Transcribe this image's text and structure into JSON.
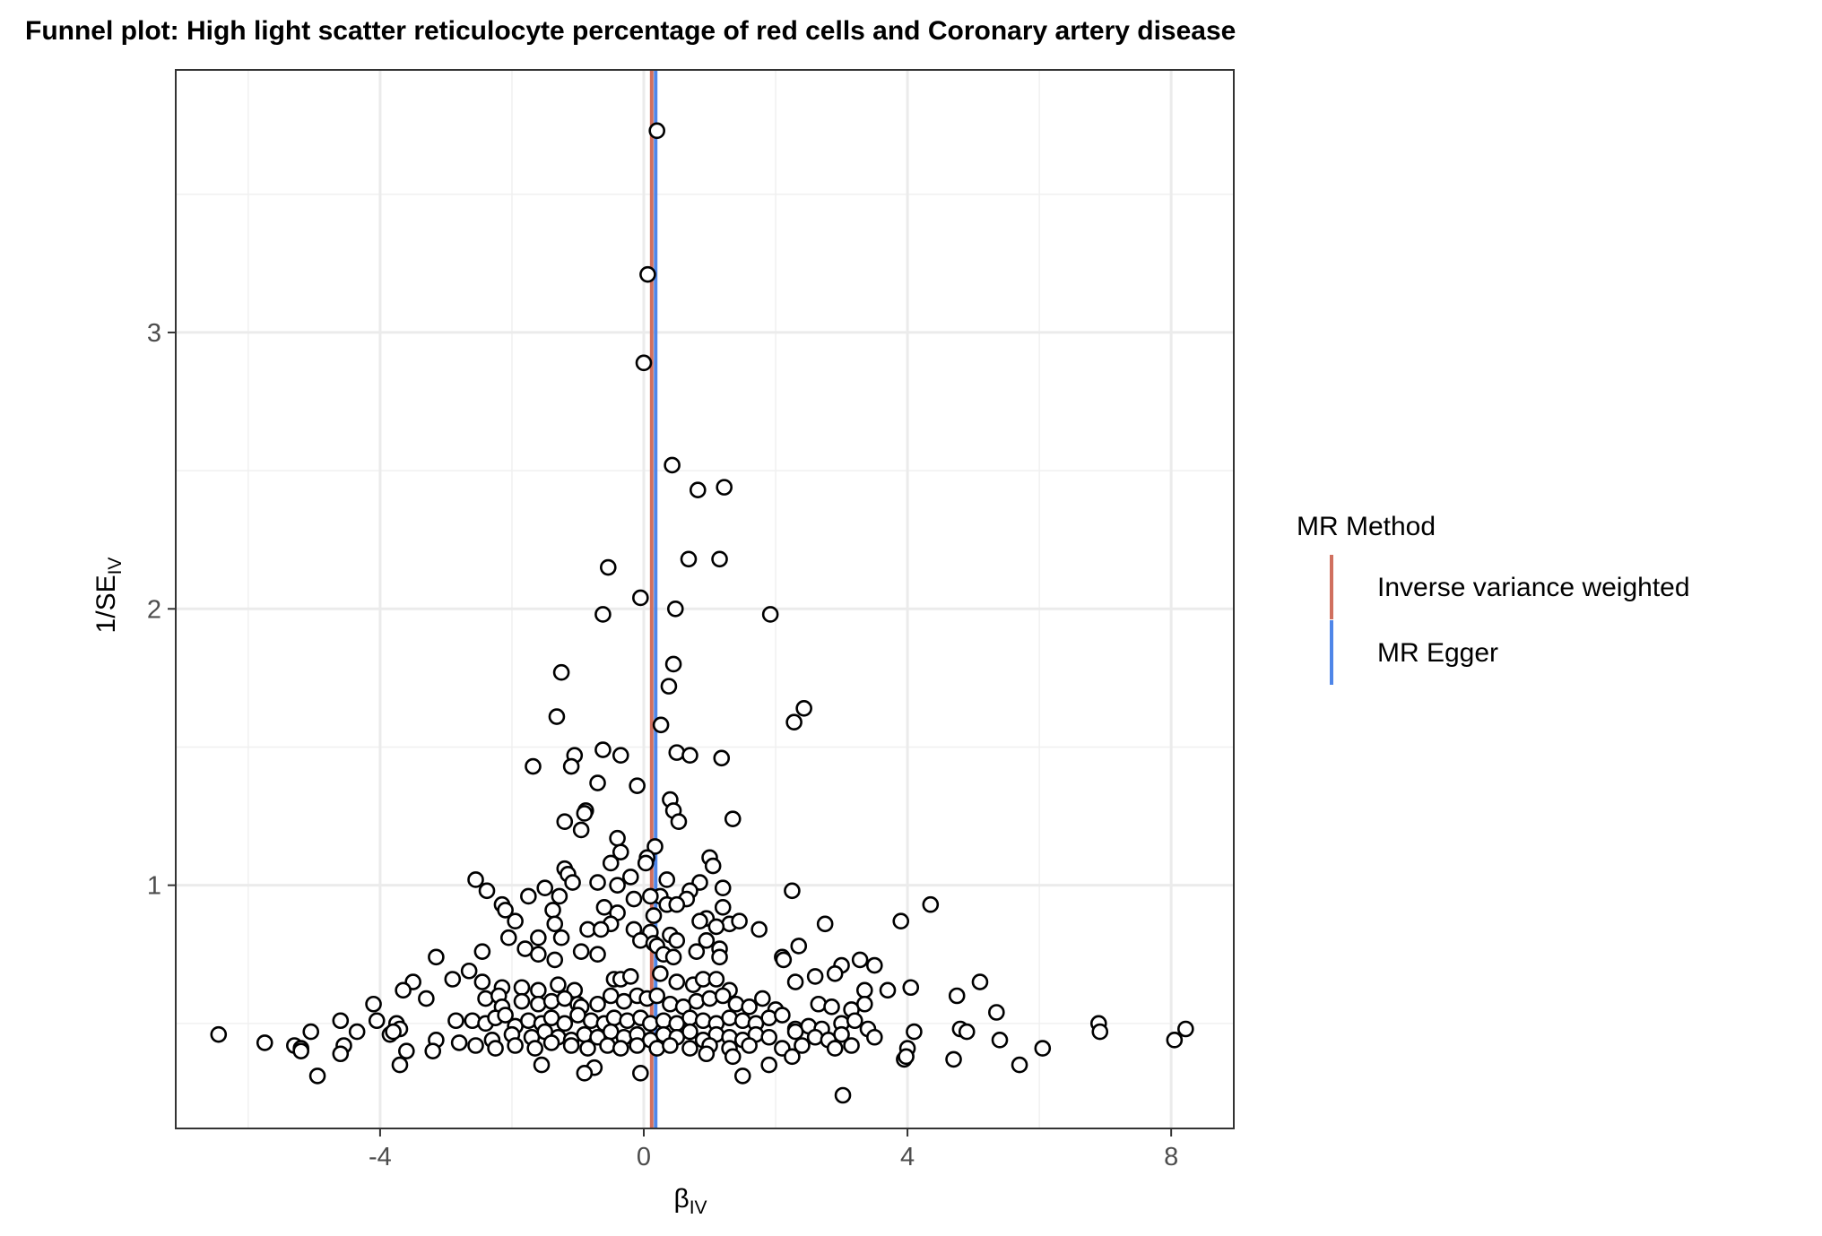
{
  "chart_data": {
    "type": "scatter",
    "title": "Funnel plot: High light scatter reticulocyte percentage of red cells and Coronary artery disease",
    "xlabel_main": "β",
    "xlabel_sub": "IV",
    "ylabel_main": "1/SE",
    "ylabel_sub": "IV",
    "xlim": [
      -7.1,
      8.95
    ],
    "ylim": [
      0.12,
      3.95
    ],
    "x_ticks": [
      -4,
      0,
      4,
      8
    ],
    "x_tick_labels": [
      "-4",
      "0",
      "4",
      "8"
    ],
    "y_ticks": [
      1,
      2,
      3
    ],
    "y_tick_labels": [
      "1",
      "2",
      "3"
    ],
    "grid": true,
    "legend": {
      "title": "MR Method",
      "placement": "right",
      "entries": [
        {
          "label": "Inverse variance weighted",
          "color": "#d0705f"
        },
        {
          "label": "MR Egger",
          "color": "#4f86e8"
        }
      ]
    },
    "lines": [
      {
        "name": "Inverse variance weighted",
        "x": 0.12,
        "color": "#d0705f"
      },
      {
        "name": "MR Egger",
        "x": 0.18,
        "color": "#4f86e8"
      }
    ],
    "points": [
      [
        0.2,
        3.73
      ],
      [
        0.06,
        3.21
      ],
      [
        0.0,
        2.89
      ],
      [
        0.43,
        2.52
      ],
      [
        0.82,
        2.43
      ],
      [
        1.22,
        2.44
      ],
      [
        -0.54,
        2.15
      ],
      [
        0.68,
        2.18
      ],
      [
        1.15,
        2.18
      ],
      [
        -0.05,
        2.04
      ],
      [
        0.48,
        2.0
      ],
      [
        -0.62,
        1.98
      ],
      [
        1.92,
        1.98
      ],
      [
        -1.25,
        1.77
      ],
      [
        0.45,
        1.8
      ],
      [
        0.38,
        1.72
      ],
      [
        -1.32,
        1.61
      ],
      [
        0.26,
        1.58
      ],
      [
        2.28,
        1.59
      ],
      [
        2.43,
        1.64
      ],
      [
        -0.62,
        1.49
      ],
      [
        -1.05,
        1.47
      ],
      [
        -0.35,
        1.47
      ],
      [
        0.5,
        1.48
      ],
      [
        0.7,
        1.47
      ],
      [
        1.18,
        1.46
      ],
      [
        -1.68,
        1.43
      ],
      [
        -1.1,
        1.43
      ],
      [
        -0.7,
        1.37
      ],
      [
        -0.1,
        1.36
      ],
      [
        0.4,
        1.31
      ],
      [
        -0.88,
        1.27
      ],
      [
        -0.9,
        1.26
      ],
      [
        0.45,
        1.27
      ],
      [
        -1.2,
        1.23
      ],
      [
        -0.95,
        1.2
      ],
      [
        0.53,
        1.23
      ],
      [
        1.35,
        1.24
      ],
      [
        -0.4,
        1.17
      ],
      [
        0.17,
        1.14
      ],
      [
        -0.35,
        1.12
      ],
      [
        -0.5,
        1.08
      ],
      [
        0.05,
        1.1
      ],
      [
        0.03,
        1.08
      ],
      [
        1.0,
        1.1
      ],
      [
        1.05,
        1.07
      ],
      [
        -1.2,
        1.06
      ],
      [
        -1.15,
        1.04
      ],
      [
        -0.2,
        1.03
      ],
      [
        -0.7,
        1.01
      ],
      [
        -1.08,
        1.01
      ],
      [
        0.35,
        1.02
      ],
      [
        0.85,
        1.01
      ],
      [
        1.2,
        0.99
      ],
      [
        0.7,
        0.98
      ],
      [
        -2.55,
        1.02
      ],
      [
        -2.38,
        0.98
      ],
      [
        -1.5,
        0.99
      ],
      [
        -1.28,
        0.96
      ],
      [
        -1.75,
        0.96
      ],
      [
        -0.4,
        1.0
      ],
      [
        -0.15,
        0.95
      ],
      [
        0.25,
        0.96
      ],
      [
        0.1,
        0.96
      ],
      [
        0.65,
        0.95
      ],
      [
        2.25,
        0.98
      ],
      [
        -2.15,
        0.93
      ],
      [
        -2.1,
        0.91
      ],
      [
        -1.38,
        0.91
      ],
      [
        -0.6,
        0.92
      ],
      [
        -0.4,
        0.9
      ],
      [
        0.35,
        0.93
      ],
      [
        0.15,
        0.89
      ],
      [
        0.5,
        0.93
      ],
      [
        1.2,
        0.92
      ],
      [
        0.95,
        0.88
      ],
      [
        -1.95,
        0.87
      ],
      [
        -1.35,
        0.86
      ],
      [
        -0.5,
        0.86
      ],
      [
        -0.85,
        0.84
      ],
      [
        -0.65,
        0.84
      ],
      [
        -0.15,
        0.84
      ],
      [
        0.1,
        0.83
      ],
      [
        0.4,
        0.82
      ],
      [
        0.85,
        0.87
      ],
      [
        1.3,
        0.86
      ],
      [
        1.45,
        0.87
      ],
      [
        1.1,
        0.85
      ],
      [
        1.75,
        0.84
      ],
      [
        2.75,
        0.86
      ],
      [
        3.9,
        0.87
      ],
      [
        4.35,
        0.93
      ],
      [
        -2.05,
        0.81
      ],
      [
        -1.6,
        0.81
      ],
      [
        -1.25,
        0.81
      ],
      [
        -0.05,
        0.8
      ],
      [
        0.5,
        0.8
      ],
      [
        0.15,
        0.79
      ],
      [
        0.2,
        0.78
      ],
      [
        0.95,
        0.8
      ],
      [
        1.15,
        0.77
      ],
      [
        0.8,
        0.76
      ],
      [
        2.35,
        0.78
      ],
      [
        -2.45,
        0.76
      ],
      [
        -1.8,
        0.77
      ],
      [
        -1.6,
        0.75
      ],
      [
        -1.35,
        0.73
      ],
      [
        -0.95,
        0.76
      ],
      [
        -0.7,
        0.75
      ],
      [
        0.3,
        0.75
      ],
      [
        0.45,
        0.74
      ],
      [
        1.15,
        0.74
      ],
      [
        2.1,
        0.74
      ],
      [
        2.12,
        0.73
      ],
      [
        3.0,
        0.71
      ],
      [
        3.28,
        0.73
      ],
      [
        3.5,
        0.71
      ],
      [
        -3.15,
        0.74
      ],
      [
        -2.65,
        0.69
      ],
      [
        -2.9,
        0.66
      ],
      [
        -3.5,
        0.65
      ],
      [
        -3.65,
        0.62
      ],
      [
        -2.45,
        0.65
      ],
      [
        -2.15,
        0.63
      ],
      [
        -1.85,
        0.63
      ],
      [
        -1.6,
        0.62
      ],
      [
        -1.3,
        0.64
      ],
      [
        -1.05,
        0.62
      ],
      [
        -0.45,
        0.66
      ],
      [
        -0.35,
        0.66
      ],
      [
        -0.2,
        0.67
      ],
      [
        0.25,
        0.68
      ],
      [
        0.5,
        0.65
      ],
      [
        0.75,
        0.64
      ],
      [
        0.9,
        0.66
      ],
      [
        1.1,
        0.66
      ],
      [
        1.3,
        0.62
      ],
      [
        2.3,
        0.65
      ],
      [
        2.6,
        0.67
      ],
      [
        2.9,
        0.68
      ],
      [
        3.35,
        0.62
      ],
      [
        3.7,
        0.62
      ],
      [
        4.05,
        0.63
      ],
      [
        4.75,
        0.6
      ],
      [
        5.1,
        0.65
      ],
      [
        -4.1,
        0.57
      ],
      [
        -3.3,
        0.59
      ],
      [
        -2.4,
        0.59
      ],
      [
        -2.2,
        0.6
      ],
      [
        -2.15,
        0.56
      ],
      [
        -1.85,
        0.58
      ],
      [
        -1.6,
        0.57
      ],
      [
        -1.4,
        0.58
      ],
      [
        -1.2,
        0.59
      ],
      [
        -1.0,
        0.57
      ],
      [
        -0.95,
        0.56
      ],
      [
        -0.7,
        0.57
      ],
      [
        -0.5,
        0.6
      ],
      [
        -0.3,
        0.58
      ],
      [
        -0.1,
        0.6
      ],
      [
        0.05,
        0.59
      ],
      [
        0.2,
        0.6
      ],
      [
        0.4,
        0.57
      ],
      [
        0.6,
        0.56
      ],
      [
        0.8,
        0.58
      ],
      [
        1.0,
        0.59
      ],
      [
        1.2,
        0.6
      ],
      [
        1.4,
        0.57
      ],
      [
        1.6,
        0.56
      ],
      [
        1.8,
        0.59
      ],
      [
        2.0,
        0.55
      ],
      [
        2.65,
        0.57
      ],
      [
        2.85,
        0.56
      ],
      [
        3.15,
        0.55
      ],
      [
        3.35,
        0.57
      ],
      [
        5.35,
        0.54
      ],
      [
        -4.05,
        0.51
      ],
      [
        -3.75,
        0.5
      ],
      [
        -3.7,
        0.48
      ],
      [
        -3.85,
        0.46
      ],
      [
        -2.85,
        0.51
      ],
      [
        -2.6,
        0.51
      ],
      [
        -2.4,
        0.5
      ],
      [
        -2.25,
        0.52
      ],
      [
        -2.1,
        0.53
      ],
      [
        -1.95,
        0.49
      ],
      [
        -1.75,
        0.51
      ],
      [
        -1.55,
        0.5
      ],
      [
        -1.4,
        0.52
      ],
      [
        -1.2,
        0.5
      ],
      [
        -1.0,
        0.53
      ],
      [
        -0.8,
        0.51
      ],
      [
        -0.6,
        0.5
      ],
      [
        -0.45,
        0.52
      ],
      [
        -0.25,
        0.51
      ],
      [
        -0.05,
        0.52
      ],
      [
        0.1,
        0.5
      ],
      [
        0.3,
        0.51
      ],
      [
        0.5,
        0.5
      ],
      [
        0.7,
        0.52
      ],
      [
        0.9,
        0.51
      ],
      [
        1.1,
        0.5
      ],
      [
        1.3,
        0.52
      ],
      [
        1.5,
        0.51
      ],
      [
        1.7,
        0.5
      ],
      [
        1.9,
        0.52
      ],
      [
        2.1,
        0.53
      ],
      [
        2.3,
        0.48
      ],
      [
        2.5,
        0.49
      ],
      [
        2.7,
        0.48
      ],
      [
        3.0,
        0.5
      ],
      [
        3.2,
        0.51
      ],
      [
        3.4,
        0.48
      ],
      [
        6.9,
        0.5
      ],
      [
        6.92,
        0.47
      ],
      [
        -6.45,
        0.46
      ],
      [
        -5.05,
        0.47
      ],
      [
        -4.6,
        0.51
      ],
      [
        -4.35,
        0.47
      ],
      [
        -3.8,
        0.47
      ],
      [
        -3.15,
        0.44
      ],
      [
        -2.8,
        0.43
      ],
      [
        -2.3,
        0.44
      ],
      [
        -2.0,
        0.46
      ],
      [
        -1.7,
        0.45
      ],
      [
        -1.5,
        0.47
      ],
      [
        -1.3,
        0.45
      ],
      [
        -1.1,
        0.44
      ],
      [
        -0.9,
        0.46
      ],
      [
        -0.7,
        0.45
      ],
      [
        -0.5,
        0.47
      ],
      [
        -0.3,
        0.45
      ],
      [
        -0.1,
        0.46
      ],
      [
        0.1,
        0.44
      ],
      [
        0.3,
        0.46
      ],
      [
        0.5,
        0.45
      ],
      [
        0.7,
        0.47
      ],
      [
        0.9,
        0.44
      ],
      [
        1.1,
        0.46
      ],
      [
        1.3,
        0.45
      ],
      [
        1.5,
        0.44
      ],
      [
        1.7,
        0.46
      ],
      [
        1.9,
        0.45
      ],
      [
        2.3,
        0.47
      ],
      [
        2.6,
        0.45
      ],
      [
        2.8,
        0.44
      ],
      [
        3.0,
        0.46
      ],
      [
        3.5,
        0.45
      ],
      [
        4.1,
        0.47
      ],
      [
        4.8,
        0.48
      ],
      [
        4.9,
        0.47
      ],
      [
        5.4,
        0.44
      ],
      [
        8.05,
        0.44
      ],
      [
        8.22,
        0.48
      ],
      [
        -5.75,
        0.43
      ],
      [
        -5.3,
        0.42
      ],
      [
        -5.2,
        0.41
      ],
      [
        -4.55,
        0.42
      ],
      [
        -4.6,
        0.39
      ],
      [
        -3.6,
        0.4
      ],
      [
        -3.2,
        0.4
      ],
      [
        -2.55,
        0.42
      ],
      [
        -2.25,
        0.41
      ],
      [
        -1.95,
        0.42
      ],
      [
        -1.65,
        0.41
      ],
      [
        -1.4,
        0.43
      ],
      [
        -1.1,
        0.42
      ],
      [
        -0.85,
        0.41
      ],
      [
        -0.55,
        0.42
      ],
      [
        -0.35,
        0.41
      ],
      [
        -0.1,
        0.42
      ],
      [
        0.2,
        0.41
      ],
      [
        0.4,
        0.42
      ],
      [
        0.7,
        0.41
      ],
      [
        1.0,
        0.42
      ],
      [
        1.3,
        0.41
      ],
      [
        1.6,
        0.42
      ],
      [
        2.1,
        0.41
      ],
      [
        2.4,
        0.42
      ],
      [
        2.9,
        0.41
      ],
      [
        3.15,
        0.42
      ],
      [
        4.0,
        0.41
      ],
      [
        6.05,
        0.41
      ],
      [
        -5.2,
        0.4
      ],
      [
        -3.7,
        0.35
      ],
      [
        -1.55,
        0.35
      ],
      [
        -0.75,
        0.34
      ],
      [
        0.95,
        0.39
      ],
      [
        1.35,
        0.38
      ],
      [
        1.9,
        0.35
      ],
      [
        2.25,
        0.38
      ],
      [
        3.95,
        0.37
      ],
      [
        3.98,
        0.38
      ],
      [
        4.7,
        0.37
      ],
      [
        5.7,
        0.35
      ],
      [
        -4.95,
        0.31
      ],
      [
        -0.9,
        0.32
      ],
      [
        -0.05,
        0.32
      ],
      [
        1.5,
        0.31
      ],
      [
        3.02,
        0.24
      ]
    ]
  }
}
